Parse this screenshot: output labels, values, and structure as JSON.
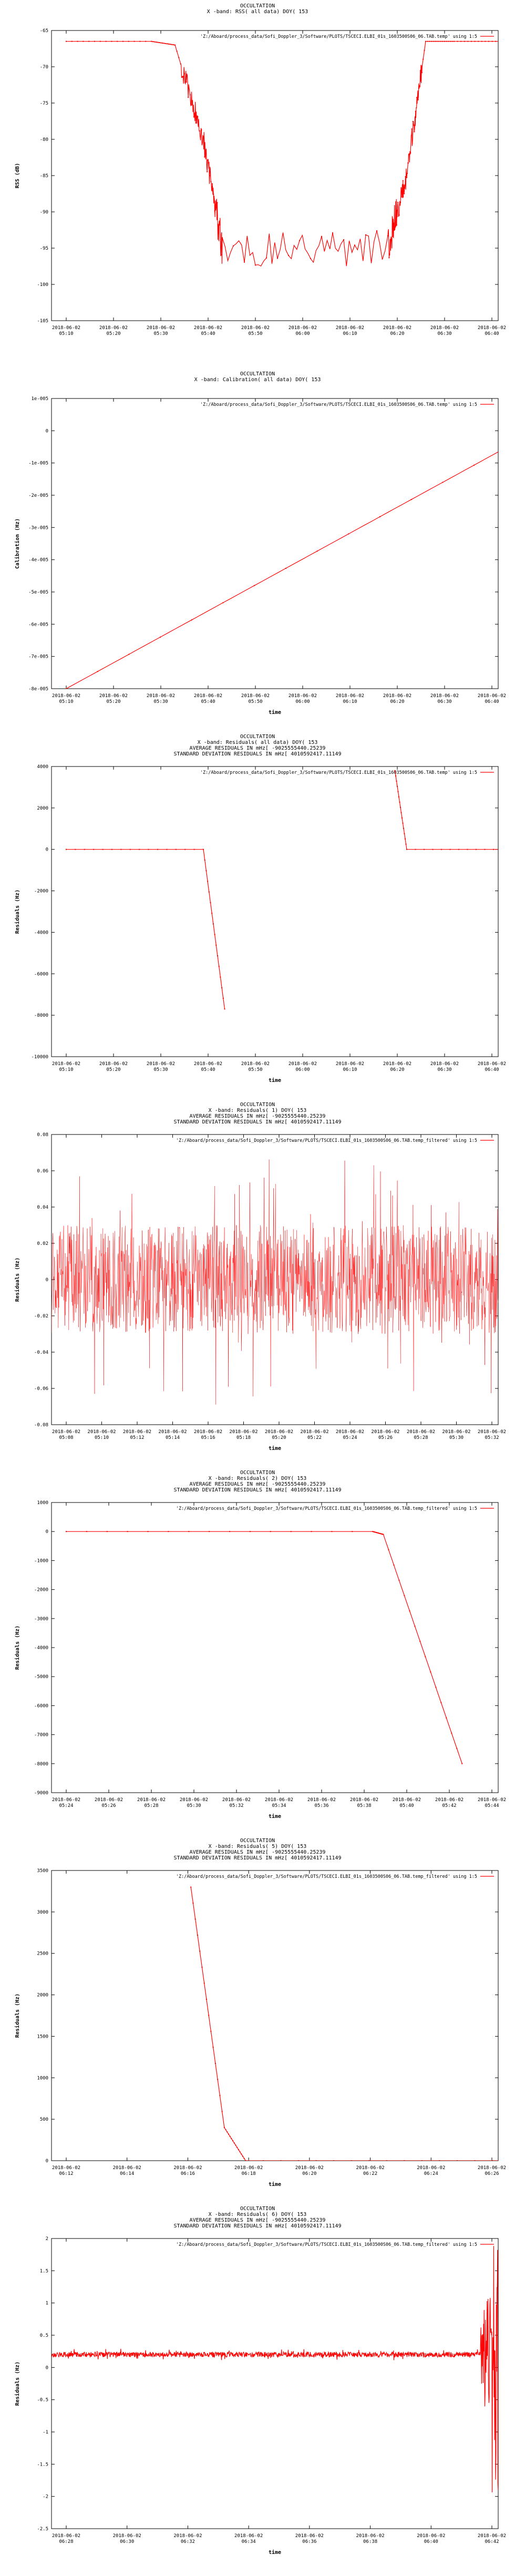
{
  "chart_data": [
    {
      "type": "line",
      "title_lines": [
        "OCCULTATION",
        "X -band: RSS( all data) DOY( 153"
      ],
      "legend": "'Z:/Aboard/process_data/Sofi_Doppler_3/Software/PLOTS/TSCECI.ELBI_01s_1603500S06_06.TAB.temp' using 1:5",
      "xlabel": "",
      "ylabel": "RSS (dB)",
      "ylim": [
        -105,
        -65
      ],
      "yticks": [
        -65,
        -70,
        -75,
        -80,
        -85,
        -90,
        -95,
        -100,
        -105
      ],
      "ytick_labels": [
        "-65",
        "-70",
        "-75",
        "-80",
        "-85",
        "-90",
        "-95",
        "-100",
        "-105"
      ],
      "xticks": [
        "2018-06-02\n05:10",
        "2018-06-02\n05:20",
        "2018-06-02\n05:30",
        "2018-06-02\n05:40",
        "2018-06-02\n05:50",
        "2018-06-02\n06:00",
        "2018-06-02\n06:10",
        "2018-06-02\n06:20",
        "2018-06-02\n06:30",
        "2018-06-02\n06:40"
      ],
      "series": [
        {
          "name": "",
          "x_index": [
            0,
            1.8,
            2.3,
            2.9,
            3.3,
            6.8,
            7.2,
            7.6,
            8.2,
            9.3,
            9.6,
            9.95
          ],
          "values": [
            -66.5,
            -66.5,
            -67.0,
            -80.0,
            -95.0,
            -95.0,
            -85.0,
            -66.5,
            -66.5,
            -66.5,
            -83.0,
            -66.5
          ]
        }
      ],
      "color": "#ff0000"
    },
    {
      "type": "line",
      "title_lines": [
        "OCCULTATION",
        "X -band: Calibration( all data) DOY( 153"
      ],
      "legend": "'Z:/Aboard/process_data/Sofi_Doppler_3/Software/PLOTS/TSCECI.ELBI_01s_1603500S06_06.TAB.temp' using 1:5",
      "xlabel": "time",
      "ylabel": "Calibration (Hz)",
      "ylim": [
        -8e-05,
        1e-05
      ],
      "yticks": [
        1e-05,
        0,
        -1e-05,
        -2e-05,
        -3e-05,
        -4e-05,
        -5e-05,
        -6e-05,
        -7e-05,
        -8e-05
      ],
      "ytick_labels": [
        "1e-005",
        "0",
        "-1e-005",
        "-2e-005",
        "-3e-005",
        "-4e-005",
        "-5e-005",
        "-6e-005",
        "-7e-005",
        "-8e-005"
      ],
      "xticks": [
        "2018-06-02\n05:10",
        "2018-06-02\n05:20",
        "2018-06-02\n05:30",
        "2018-06-02\n05:40",
        "2018-06-02\n05:50",
        "2018-06-02\n06:00",
        "2018-06-02\n06:10",
        "2018-06-02\n06:20",
        "2018-06-02\n06:30",
        "2018-06-02\n06:40"
      ],
      "series": [
        {
          "name": "",
          "x_index": [
            0,
            9.95
          ],
          "values": [
            -8e-05,
            0
          ]
        }
      ],
      "color": "#ff0000"
    },
    {
      "type": "line",
      "title_lines": [
        "OCCULTATION",
        "X -band: Residuals( all data) DOY( 153",
        "AVERAGE RESIDUALS IN mHz[ -9025555440.25239",
        "STANDARD DEVIATION RESIDUALS IN mHz[ 4010592417.11149"
      ],
      "legend": "'Z:/Aboard/process_data/Sofi_Doppler_3/Software/PLOTS/TSCECI.ELBI_01s_1603500S06_06.TAB.temp' using 1:5",
      "xlabel": "time",
      "ylabel": "Residuals (Hz)",
      "ylim": [
        -10000,
        4000
      ],
      "yticks": [
        4000,
        2000,
        0,
        -2000,
        -4000,
        -6000,
        -8000,
        -10000
      ],
      "ytick_labels": [
        "4000",
        "2000",
        "0",
        "-2000",
        "-4000",
        "-6000",
        "-8000",
        "-10000"
      ],
      "xticks": [
        "2018-06-02\n05:10",
        "2018-06-02\n05:20",
        "2018-06-02\n05:30",
        "2018-06-02\n05:40",
        "2018-06-02\n05:50",
        "2018-06-02\n06:00",
        "2018-06-02\n06:10",
        "2018-06-02\n06:20",
        "2018-06-02\n06:30",
        "2018-06-02\n06:40"
      ],
      "series": [
        {
          "name": "",
          "x_index": [
            0,
            2.9,
            3.35
          ],
          "values": [
            0,
            0,
            -7700
          ]
        },
        {
          "name": "",
          "x_index": [
            6.95,
            7.2,
            9.95
          ],
          "values": [
            3800,
            0,
            0
          ]
        }
      ],
      "color": "#ff0000"
    },
    {
      "type": "line",
      "title_lines": [
        "OCCULTATION",
        "X -band: Residuals( 1) DOY( 153",
        "AVERAGE RESIDUALS IN mHz[ -9025555440.25239",
        "STANDARD DEVIATION RESIDUALS IN mHz[ 4010592417.11149"
      ],
      "legend": "'Z:/Aboard/process_data/Sofi_Doppler_3/Software/PLOTS/TSCECI.ELBI_01s_1603500S06_06.TAB.temp_filtered' using 1:5",
      "xlabel": "time",
      "ylabel": "Residuals (Hz)",
      "ylim": [
        -0.08,
        0.08
      ],
      "yticks": [
        0.08,
        0.06,
        0.04,
        0.02,
        0,
        -0.02,
        -0.04,
        -0.06,
        -0.08
      ],
      "ytick_labels": [
        "0.08",
        "0.06",
        "0.04",
        "0.02",
        "0",
        "-0.02",
        "-0.04",
        "-0.06",
        "-0.08"
      ],
      "xticks": [
        "2018-06-02\n05:08",
        "2018-06-02\n05:10",
        "2018-06-02\n05:12",
        "2018-06-02\n05:14",
        "2018-06-02\n05:16",
        "2018-06-02\n05:18",
        "2018-06-02\n05:20",
        "2018-06-02\n05:22",
        "2018-06-02\n05:24",
        "2018-06-02\n05:26",
        "2018-06-02\n05:28",
        "2018-06-02\n05:30",
        "2018-06-02\n05:32"
      ],
      "series": [
        {
          "name": "",
          "noise": true,
          "mean": 0.0,
          "amplitude": 0.03,
          "spike": 0.075
        }
      ],
      "color": "#ff0000"
    },
    {
      "type": "line",
      "title_lines": [
        "OCCULTATION",
        "X -band: Residuals( 2) DOY( 153",
        "AVERAGE RESIDUALS IN mHz[ -9025555440.25239",
        "STANDARD DEVIATION RESIDUALS IN mHz[ 4010592417.11149"
      ],
      "legend": "'Z:/Aboard/process_data/Sofi_Doppler_3/Software/PLOTS/TSCECI.ELBI_01s_1603500S06_06.TAB.temp_filtered' using 1:5",
      "xlabel": "time",
      "ylabel": "Residuals (Hz)",
      "ylim": [
        -9000,
        1000
      ],
      "yticks": [
        1000,
        0,
        -1000,
        -2000,
        -3000,
        -4000,
        -5000,
        -6000,
        -7000,
        -8000,
        -9000
      ],
      "ytick_labels": [
        "1000",
        "0",
        "-1000",
        "-2000",
        "-3000",
        "-4000",
        "-5000",
        "-6000",
        "-7000",
        "-8000",
        "-9000"
      ],
      "xticks": [
        "2018-06-02\n05:24",
        "2018-06-02\n05:26",
        "2018-06-02\n05:28",
        "2018-06-02\n05:30",
        "2018-06-02\n05:32",
        "2018-06-02\n05:34",
        "2018-06-02\n05:36",
        "2018-06-02\n05:38",
        "2018-06-02\n05:40",
        "2018-06-02\n05:42",
        "2018-06-02\n05:44"
      ],
      "series": [
        {
          "name": "",
          "x_index": [
            0,
            7.2,
            7.45,
            9.3
          ],
          "values": [
            0,
            0,
            -100,
            -8000
          ]
        }
      ],
      "color": "#ff0000"
    },
    {
      "type": "line",
      "title_lines": [
        "OCCULTATION",
        "X -band: Residuals( 5) DOY( 153",
        "AVERAGE RESIDUALS IN mHz[ -9025555440.25239",
        "STANDARD DEVIATION RESIDUALS IN mHz[ 4010592417.11149"
      ],
      "legend": "'Z:/Aboard/process_data/Sofi_Doppler_3/Software/PLOTS/TSCECI.ELBI_01s_1603500S06_06.TAB.temp_filtered' using 1:5",
      "xlabel": "time",
      "ylabel": "Residuals (Hz)",
      "ylim": [
        0,
        3500
      ],
      "yticks": [
        3500,
        3000,
        2500,
        2000,
        1500,
        1000,
        500,
        0
      ],
      "ytick_labels": [
        "3500",
        "3000",
        "2500",
        "2000",
        "1500",
        "1000",
        "500",
        "0"
      ],
      "xticks": [
        "2018-06-02\n06:12",
        "2018-06-02\n06:14",
        "2018-06-02\n06:16",
        "2018-06-02\n06:18",
        "2018-06-02\n06:20",
        "2018-06-02\n06:22",
        "2018-06-02\n06:24",
        "2018-06-02\n06:26"
      ],
      "series": [
        {
          "name": "",
          "x_index": [
            2.05,
            2.6,
            2.95,
            7.3
          ],
          "values": [
            3300,
            400,
            0,
            0
          ]
        }
      ],
      "color": "#ff0000"
    },
    {
      "type": "line",
      "title_lines": [
        "OCCULTATION",
        "X -band: Residuals( 6) DOY( 153",
        "AVERAGE RESIDUALS IN mHz[ -9025555440.25239",
        "STANDARD DEVIATION RESIDUALS IN mHz[ 4010592417.11149"
      ],
      "legend": "'Z:/Aboard/process_data/Sofi_Doppler_3/Software/PLOTS/TSCECI.ELBI_01s_1603500S06_06.TAB.temp_filtered' using 1:5",
      "xlabel": "time",
      "ylabel": "Residuals (Hz)",
      "ylim": [
        -2.5,
        2
      ],
      "yticks": [
        2,
        1.5,
        1,
        0.5,
        0,
        -0.5,
        -1,
        -1.5,
        -2,
        -2.5
      ],
      "ytick_labels": [
        "2",
        "1.5",
        "1",
        "0.5",
        "0",
        "-0.5",
        "-1",
        "-1.5",
        "-2",
        "-2.5"
      ],
      "xticks": [
        "2018-06-02\n06:28",
        "2018-06-02\n06:30",
        "2018-06-02\n06:32",
        "2018-06-02\n06:34",
        "2018-06-02\n06:36",
        "2018-06-02\n06:38",
        "2018-06-02\n06:40",
        "2018-06-02\n06:42"
      ],
      "series": [
        {
          "name": "",
          "noise": true,
          "mean": 0.2,
          "amplitude": 0.04,
          "spike": 2.2
        }
      ],
      "color": "#ff0000"
    }
  ]
}
